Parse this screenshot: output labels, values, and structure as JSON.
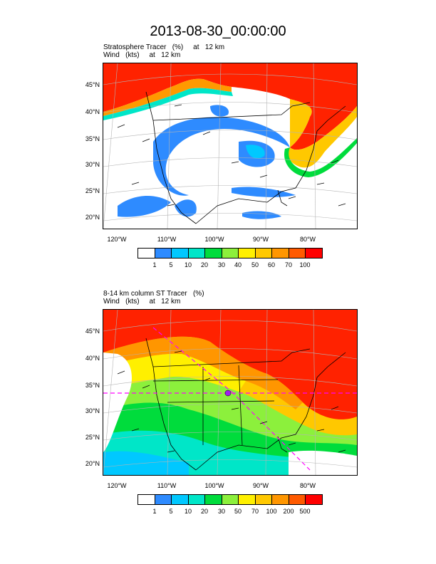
{
  "title": "2013-08-30_00:00:00",
  "panel1": {
    "label_line1": "Stratosphere Tracer   (%)     at   12 km",
    "label_line2": "Wind   (kts)     at   12 km",
    "colorbar_labels": [
      "1",
      "5",
      "10",
      "20",
      "30",
      "40",
      "50",
      "60",
      "70",
      "100"
    ]
  },
  "panel2": {
    "label_line1": "8-14 km column ST Tracer   (%)",
    "label_line2": "Wind   (kts)     at   12 km",
    "colorbar_labels": [
      "1",
      "5",
      "10",
      "20",
      "30",
      "50",
      "70",
      "100",
      "200",
      "500"
    ]
  },
  "lat_labels": [
    "45°N",
    "40°N",
    "35°N",
    "30°N",
    "25°N",
    "20°N"
  ],
  "lon_labels": [
    "120°W",
    "110°W",
    "100°W",
    "90°W",
    "80°W"
  ],
  "colors": {
    "palette": [
      "#ffffff",
      "#2e8bff",
      "#00c8ff",
      "#00e6c8",
      "#00dc3c",
      "#8cf03c",
      "#fff000",
      "#ffc800",
      "#ff9600",
      "#ff5a00",
      "#ff0000"
    ],
    "land_outline": "#000000",
    "wind_barb": "#000000",
    "trajectory": "#ff00ff"
  }
}
